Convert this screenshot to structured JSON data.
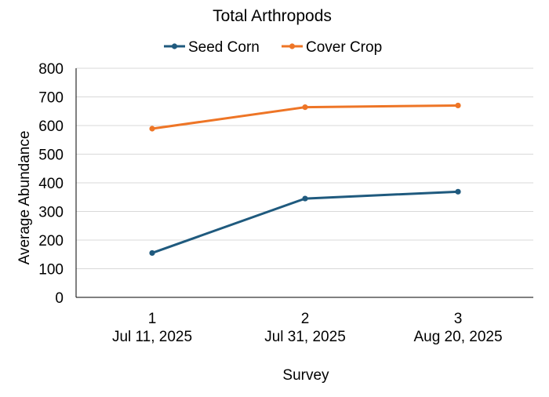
{
  "chart_data": {
    "type": "line",
    "title": "Total Arthropods",
    "xlabel": "Survey",
    "ylabel": "Average Abundance",
    "ylim": [
      0,
      800
    ],
    "yticks": [
      0,
      100,
      200,
      300,
      400,
      500,
      600,
      700,
      800
    ],
    "grid": true,
    "legend_position": "top",
    "categories": [
      {
        "survey": "1",
        "date": "Jul 11, 2025"
      },
      {
        "survey": "2",
        "date": "Jul 31, 2025"
      },
      {
        "survey": "3",
        "date": "Aug 20, 2025"
      }
    ],
    "series": [
      {
        "name": "Seed Corn",
        "color": "#1f5a7e",
        "values": [
          155,
          345,
          369
        ]
      },
      {
        "name": "Cover Crop",
        "color": "#ee7526",
        "values": [
          589,
          664,
          670
        ]
      }
    ]
  }
}
